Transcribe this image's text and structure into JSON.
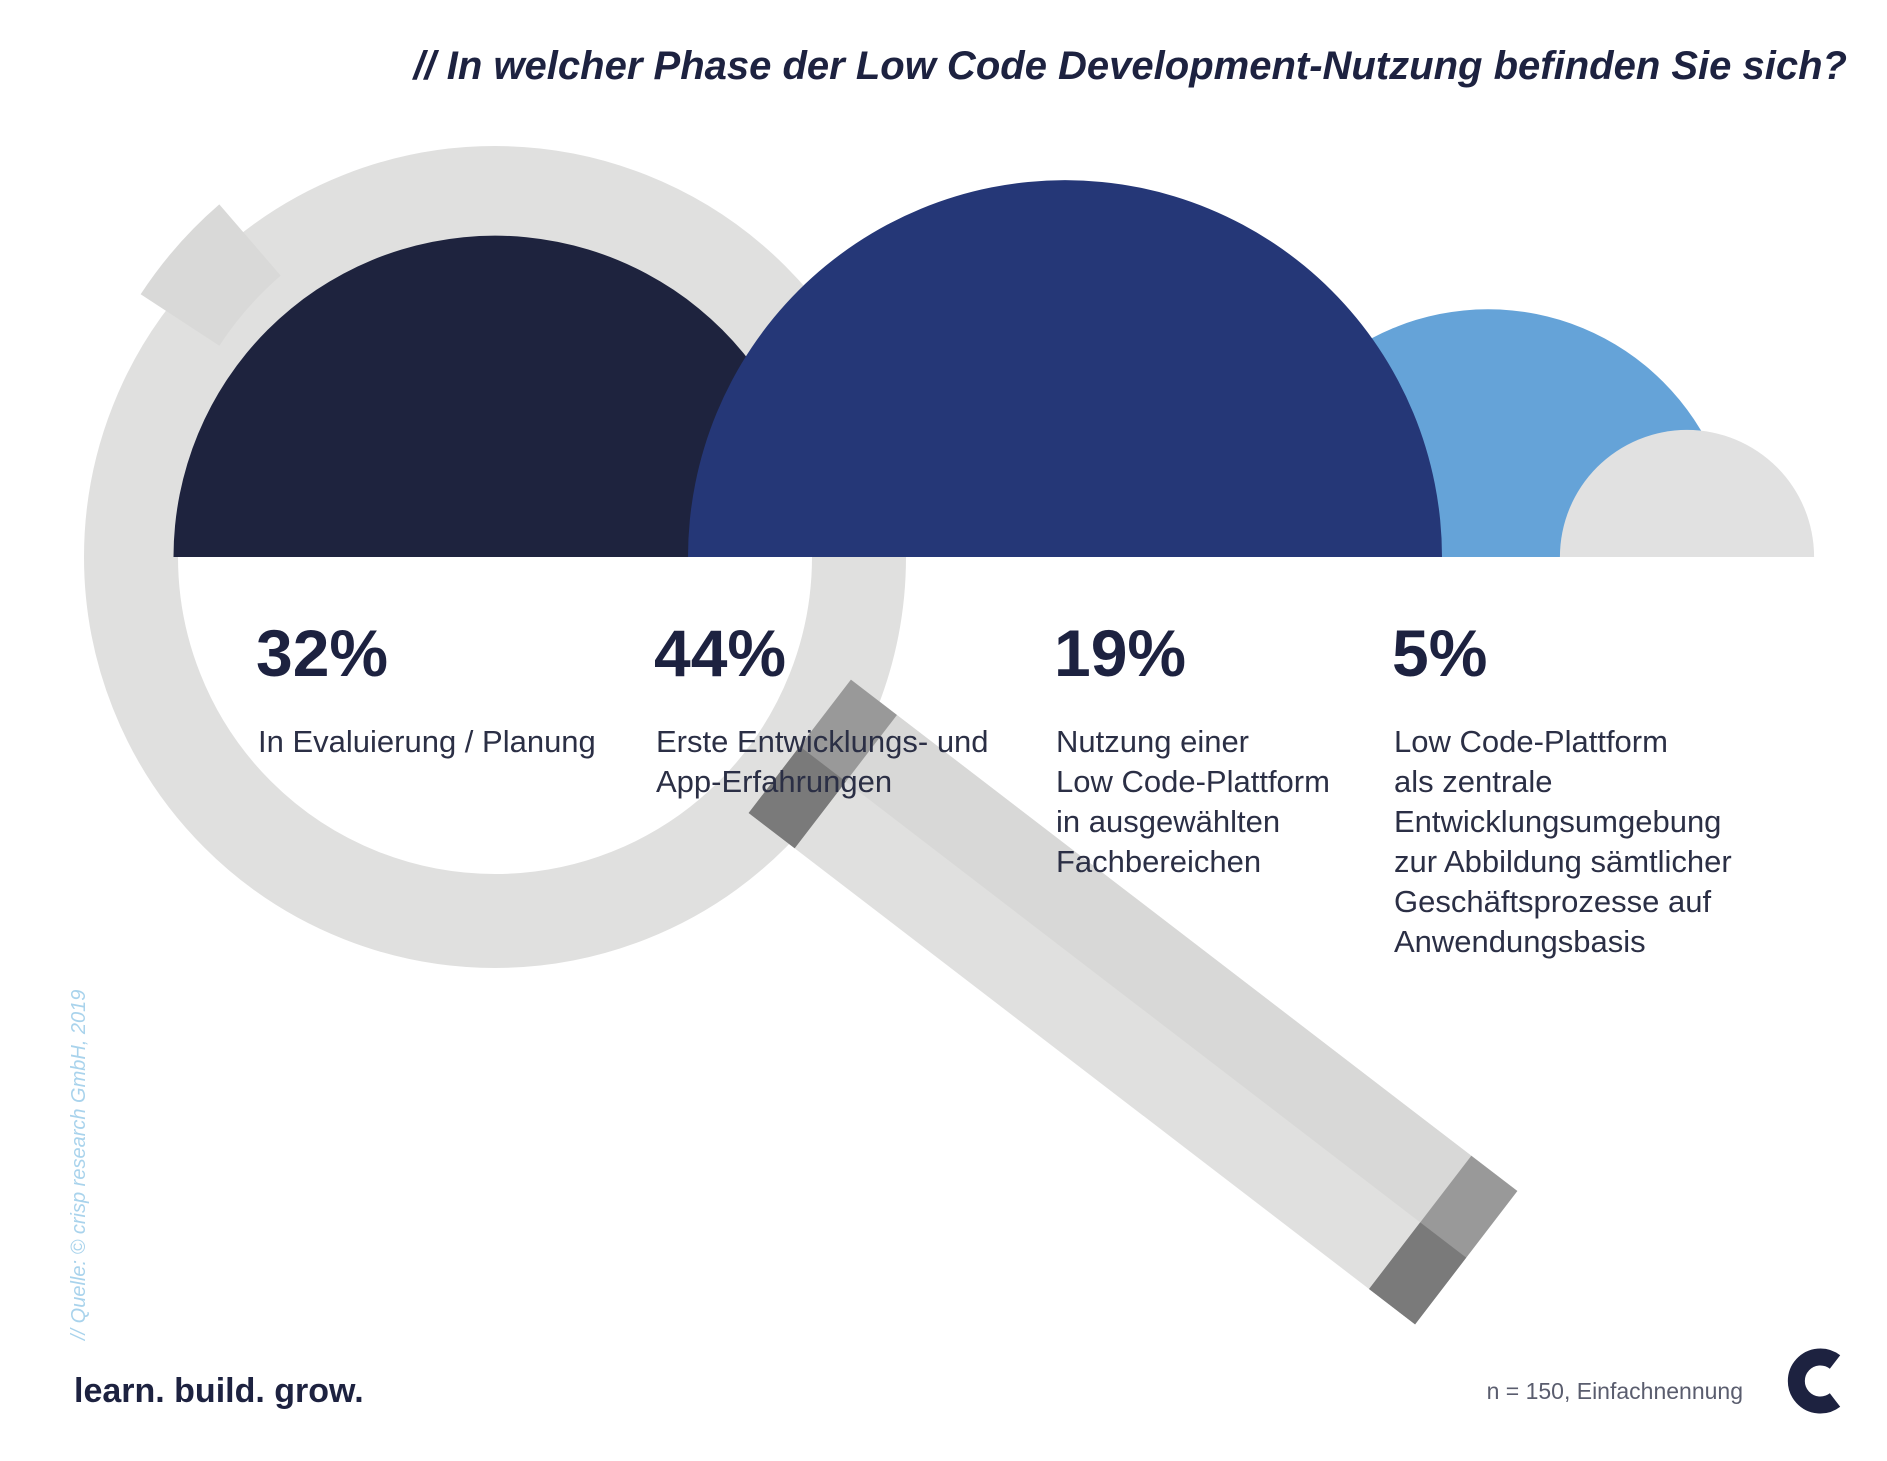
{
  "header": {
    "title": "// In welcher Phase der Low Code Development-Nutzung befinden Sie sich?"
  },
  "chart_data": {
    "type": "semicircle-area",
    "title": "// In welcher Phase der Low Code Development-Nutzung befinden Sie sich?",
    "unit": "%",
    "series": [
      {
        "value": 32,
        "value_label": "32%",
        "label": "In Evaluierung / Planung",
        "color": "#1e233e"
      },
      {
        "value": 44,
        "value_label": "44%",
        "label": "Erste Entwicklungs- und\nApp-Erfahrungen",
        "color": "#253777"
      },
      {
        "value": 19,
        "value_label": "19%",
        "label": "Nutzung einer\nLow Code-Plattform\nin ausgewählten\nFachbereichen",
        "color": "#65a3d8"
      },
      {
        "value": 5,
        "value_label": "5%",
        "label": "Low Code-Plattform\nals zentrale\nEntwicklungsumgebung\nzur Abbildung sämtlicher\nGeschäftsprozesse auf\nAnwendungsbasis",
        "color": "#e1e1e1"
      }
    ]
  },
  "footer": {
    "source": "// Quelle: © crisp research GmbH, 2019",
    "tagline": "learn. build. grow.",
    "note": "n = 150, Einfachnennung"
  },
  "colors": {
    "text_dark": "#1d2240",
    "magnifier_light": "#e0e0df",
    "magnifier_mid": "#999999",
    "magnifier_dark": "#7a7a7a",
    "source_text": "#a9d3ec"
  },
  "icons": {
    "background": "magnifying-glass-icon",
    "logo": "crisp-logo-icon"
  }
}
